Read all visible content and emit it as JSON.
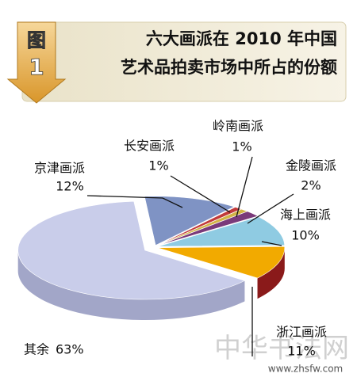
{
  "badge": {
    "label": "图",
    "number": "1"
  },
  "chart_data": {
    "type": "pie",
    "title": [
      "六大画派在 2010 年中国",
      "艺术品拍卖市场中所占的份额"
    ],
    "categories": [
      "京津画派",
      "长安画派",
      "岭南画派",
      "金陵画派",
      "海上画派",
      "浙江画派",
      "其余"
    ],
    "values": [
      12,
      1,
      1,
      2,
      10,
      11,
      63
    ],
    "value_labels": [
      "12%",
      "1%",
      "1%",
      "2%",
      "10%",
      "11%",
      "63%"
    ],
    "colors": [
      "#7f93c4",
      "#c23a3a",
      "#d2b446",
      "#7a3a7a",
      "#8fcbe2",
      "#f2aa00",
      "#c9cdea"
    ],
    "side_colors": [
      "#5b6c9a",
      "#8a2020",
      "#9a8230",
      "#552255",
      "#5f9ab4",
      "#8a1a1a",
      "#a2a6c8"
    ]
  },
  "watermark": {
    "text": "中华书法网",
    "url": "www.zhsfw.com"
  }
}
